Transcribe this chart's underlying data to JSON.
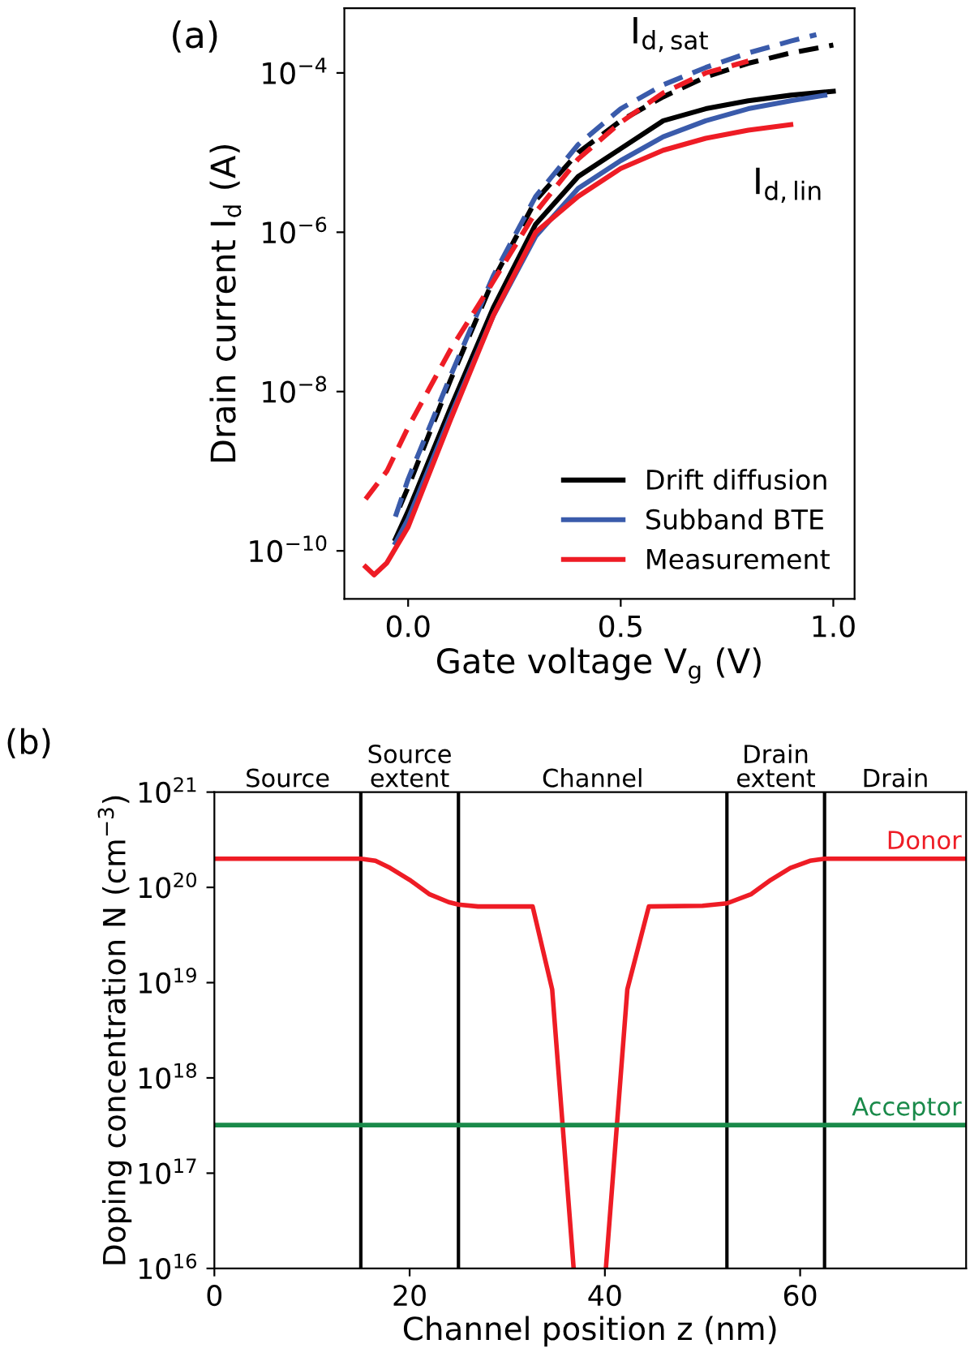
{
  "chart_data": [
    {
      "type": "line",
      "title": "(a)",
      "xlabel": "Gate voltage V$_{g}$ (V)",
      "ylabel": "Drain current I$_{d}$ (A)",
      "log": "y",
      "xlim": [
        -0.15,
        1.05
      ],
      "xticks": [
        {
          "value": 0,
          "label": "0.0"
        },
        0.5,
        {
          "value": 1,
          "label": "1.0"
        }
      ],
      "ylim": [
        2.5e-11,
        0.00065
      ],
      "yticks": [
        {
          "value": 1e-10,
          "label": "10$^{−10}$"
        },
        {
          "value": 1e-08,
          "label": "10$^{−8}$"
        },
        {
          "value": 1e-06,
          "label": "10$^{−6}$"
        },
        {
          "value": 0.0001,
          "label": "10$^{−4}$"
        }
      ],
      "legend": "lower right",
      "grid": false,
      "series": [
        {
          "name": "Drift diffusion",
          "color": "#000000",
          "line_style": "solid",
          "x": [
            -0.03,
            0,
            0.1,
            0.2,
            0.3,
            0.4,
            0.5,
            0.6,
            0.7,
            0.8,
            0.9,
            1.0
          ],
          "values": [
            1.41e-10,
            3.16e-10,
            6.31e-09,
            1.12e-07,
            1.26e-06,
            5.01e-06,
            1.12e-05,
            2.51e-05,
            3.55e-05,
            4.47e-05,
            5.25e-05,
            5.89e-05
          ]
        },
        {
          "name": "Subband BTE",
          "color": "#3a5bab",
          "line_style": "solid",
          "x": [
            -0.03,
            0,
            0.1,
            0.2,
            0.3,
            0.4,
            0.5,
            0.6,
            0.7,
            0.8,
            0.9,
            0.98
          ],
          "values": [
            1.26e-10,
            2.51e-10,
            5.01e-09,
            8.91e-08,
            8.91e-07,
            3.55e-06,
            7.94e-06,
            1.58e-05,
            2.51e-05,
            3.55e-05,
            4.47e-05,
            5.25e-05
          ]
        },
        {
          "name": "Measurement",
          "color": "#ee1c25",
          "line_style": "solid",
          "x": [
            -0.1,
            -0.08,
            -0.05,
            0,
            0.1,
            0.2,
            0.3,
            0.4,
            0.5,
            0.6,
            0.7,
            0.8,
            0.9
          ],
          "values": [
            6.31e-11,
            5.01e-11,
            7.08e-11,
            2e-10,
            4.47e-09,
            8.91e-08,
            1e-06,
            2.82e-06,
            6.31e-06,
            1.07e-05,
            1.51e-05,
            1.91e-05,
            2.24e-05
          ]
        },
        {
          "color": "#000000",
          "line_style": "dashed",
          "x": [
            -0.02,
            0,
            0.1,
            0.2,
            0.3,
            0.4,
            0.5,
            0.6,
            0.7,
            0.8,
            0.9,
            1.0
          ],
          "values": [
            3.55e-10,
            6.31e-10,
            1.41e-08,
            2.51e-07,
            2.51e-06,
            1e-05,
            2.51e-05,
            5.01e-05,
            8.91e-05,
            0.000132,
            0.000178,
            0.000224
          ]
        },
        {
          "color": "#3a5bab",
          "line_style": "dashed",
          "x": [
            -0.03,
            0,
            0.1,
            0.2,
            0.3,
            0.4,
            0.5,
            0.6,
            0.7,
            0.8,
            0.9,
            0.96
          ],
          "values": [
            2.69e-10,
            7.94e-10,
            1.58e-08,
            2.82e-07,
            2.82e-06,
            1.26e-05,
            3.55e-05,
            7.08e-05,
            0.000117,
            0.000178,
            0.000251,
            0.000302
          ]
        },
        {
          "color": "#ee1c25",
          "line_style": "dashed",
          "x": [
            -0.1,
            -0.05,
            0,
            0.1,
            0.2,
            0.3,
            0.4,
            0.5,
            0.6,
            0.7,
            0.8
          ],
          "values": [
            4.47e-10,
            1e-09,
            3.55e-09,
            3.39e-08,
            2.4e-07,
            1.78e-06,
            8.32e-06,
            2.4e-05,
            5.62e-05,
            0.0001,
            0.000141
          ]
        }
      ],
      "annotations": [
        "I$_{d,sat}$",
        "I$_{d,lin}$"
      ]
    },
    {
      "type": "line",
      "title": "(b)",
      "xlabel": "Channel position z (nm)",
      "ylabel": "Doping concentration N (cm$^{−3}$)",
      "log": "y",
      "xlim": [
        0,
        77
      ],
      "xticks": [
        0,
        20,
        40,
        60
      ],
      "ylim": [
        1e+16,
        1e+21
      ],
      "yticks": [
        {
          "value": 1e+16,
          "label": "10$^{16}$"
        },
        {
          "value": 1e+17,
          "label": "10$^{17}$"
        },
        {
          "value": 1e+18,
          "label": "10$^{18}$"
        },
        {
          "value": 1e+19,
          "label": "10$^{19}$"
        },
        {
          "value": 1e+20,
          "label": "10$^{20}$"
        },
        {
          "value": 1e+21,
          "label": "10$^{21}$"
        }
      ],
      "legend": false,
      "grid": false,
      "series": [
        {
          "name": "Donor",
          "color": "#ee1c25",
          "line_style": "solid",
          "x": [
            0,
            15,
            16.5,
            18,
            20,
            22,
            24,
            25,
            27,
            32.6,
            34.6,
            36.8,
            null,
            40.1,
            42.3,
            44.5,
            50,
            52.5,
            55,
            57,
            59,
            61,
            62.5,
            77
          ],
          "values": [
            2e+20,
            2e+20,
            1.9e+20,
            1.6e+20,
            1.2e+20,
            8.5e+19,
            7e+19,
            6.6e+19,
            6.3e+19,
            6.3e+19,
            8.5e+18,
            1e+16,
            null,
            1e+16,
            8.5e+18,
            6.3e+19,
            6.4e+19,
            6.8e+19,
            8.5e+19,
            1.2e+20,
            1.6e+20,
            1.9e+20,
            2e+20,
            2e+20
          ]
        },
        {
          "name": "Acceptor",
          "color": "#1a8a4a",
          "line_style": "solid",
          "x": [
            0,
            77
          ],
          "values": [
            3.2e+17,
            3.2e+17
          ]
        }
      ],
      "ref_lines": [
        {
          "axis": "x",
          "value": 15,
          "color": "#000000"
        },
        {
          "axis": "x",
          "value": 25,
          "color": "#000000"
        },
        {
          "axis": "x",
          "value": 52.5,
          "color": "#000000"
        },
        {
          "axis": "x",
          "value": 62.5,
          "color": "#000000"
        }
      ],
      "annotations": [
        "Source",
        "Source\nextent",
        "Channel",
        "Drain\nextent",
        "Drain"
      ]
    }
  ]
}
